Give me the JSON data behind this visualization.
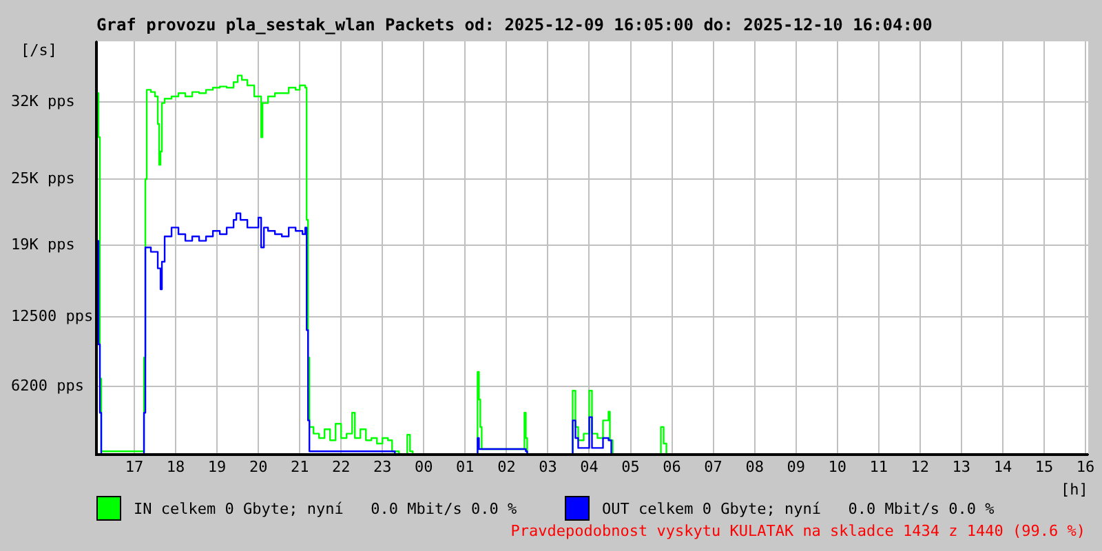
{
  "chart_data": {
    "type": "step",
    "title": "Graf provozu pla_sestak_wlan Packets od: 2025-12-09 16:05:00 do: 2025-12-10 16:04:00",
    "ylabel": "[/s]",
    "xlabel": "[h]",
    "xlim": [
      "2025-12-09T16:05",
      "2025-12-10T16:04"
    ],
    "xticks": [
      {
        "value": "2025-12-09T17:00",
        "label": "17"
      },
      {
        "value": "2025-12-09T18:00",
        "label": "18"
      },
      {
        "value": "2025-12-09T19:00",
        "label": "19"
      },
      {
        "value": "2025-12-09T20:00",
        "label": "20"
      },
      {
        "value": "2025-12-09T21:00",
        "label": "21"
      },
      {
        "value": "2025-12-09T22:00",
        "label": "22"
      },
      {
        "value": "2025-12-09T23:00",
        "label": "23"
      },
      {
        "value": "2025-12-10T00:00",
        "label": "00"
      },
      {
        "value": "2025-12-10T01:00",
        "label": "01"
      },
      {
        "value": "2025-12-10T02:00",
        "label": "02"
      },
      {
        "value": "2025-12-10T03:00",
        "label": "03"
      },
      {
        "value": "2025-12-10T04:00",
        "label": "04"
      },
      {
        "value": "2025-12-10T05:00",
        "label": "05"
      },
      {
        "value": "2025-12-10T06:00",
        "label": "06"
      },
      {
        "value": "2025-12-10T07:00",
        "label": "07"
      },
      {
        "value": "2025-12-10T08:00",
        "label": "08"
      },
      {
        "value": "2025-12-10T09:00",
        "label": "09"
      },
      {
        "value": "2025-12-10T10:00",
        "label": "10"
      },
      {
        "value": "2025-12-10T11:00",
        "label": "11"
      },
      {
        "value": "2025-12-10T12:00",
        "label": "12"
      },
      {
        "value": "2025-12-10T13:00",
        "label": "13"
      },
      {
        "value": "2025-12-10T14:00",
        "label": "14"
      },
      {
        "value": "2025-12-10T15:00",
        "label": "15"
      },
      {
        "value": "2025-12-10T16:00",
        "label": "16"
      }
    ],
    "ylim": [
      0,
      37500
    ],
    "yticks": [
      {
        "value": 0,
        "label": null
      },
      {
        "value": 6200,
        "label": "6200 pps"
      },
      {
        "value": 12500,
        "label": "12500 pps"
      },
      {
        "value": 19000,
        "label": "19K pps"
      },
      {
        "value": 25000,
        "label": "25K pps"
      },
      {
        "value": 32000,
        "label": "32K pps"
      }
    ],
    "grid": true,
    "legend": "bottom",
    "marker": "none",
    "series": [
      {
        "name": "IN celkem 0 Gbyte; nyní   0.0 Mbit/s 0.0 %",
        "color": "#00ff00",
        "x": [
          "2025-12-09T16:06",
          "2025-12-09T16:08",
          "2025-12-09T16:10",
          "2025-12-09T16:12",
          "2025-12-09T17:12",
          "2025-12-09T17:14",
          "2025-12-09T17:16",
          "2025-12-09T17:18",
          "2025-12-09T17:24",
          "2025-12-09T17:30",
          "2025-12-09T17:34",
          "2025-12-09T17:36",
          "2025-12-09T17:38",
          "2025-12-09T17:40",
          "2025-12-09T17:44",
          "2025-12-09T17:54",
          "2025-12-09T18:04",
          "2025-12-09T18:14",
          "2025-12-09T18:24",
          "2025-12-09T18:34",
          "2025-12-09T18:44",
          "2025-12-09T18:54",
          "2025-12-09T19:04",
          "2025-12-09T19:14",
          "2025-12-09T19:24",
          "2025-12-09T19:30",
          "2025-12-09T19:36",
          "2025-12-09T19:44",
          "2025-12-09T19:54",
          "2025-12-09T20:00",
          "2025-12-09T20:04",
          "2025-12-09T20:06",
          "2025-12-09T20:14",
          "2025-12-09T20:24",
          "2025-12-09T20:34",
          "2025-12-09T20:44",
          "2025-12-09T20:54",
          "2025-12-09T21:00",
          "2025-12-09T21:08",
          "2025-12-09T21:10",
          "2025-12-09T21:12",
          "2025-12-09T21:14",
          "2025-12-09T21:20",
          "2025-12-09T21:28",
          "2025-12-09T21:36",
          "2025-12-09T21:44",
          "2025-12-09T21:52",
          "2025-12-09T22:00",
          "2025-12-09T22:08",
          "2025-12-09T22:16",
          "2025-12-09T22:20",
          "2025-12-09T22:28",
          "2025-12-09T22:36",
          "2025-12-09T22:44",
          "2025-12-09T22:52",
          "2025-12-09T23:00",
          "2025-12-09T23:08",
          "2025-12-09T23:14",
          "2025-12-09T23:24",
          "2025-12-09T23:36",
          "2025-12-09T23:40",
          "2025-12-09T23:44",
          "2025-12-10T01:16",
          "2025-12-10T01:18",
          "2025-12-10T01:20",
          "2025-12-10T01:22",
          "2025-12-10T01:24",
          "2025-12-10T02:24",
          "2025-12-10T02:26",
          "2025-12-10T02:28",
          "2025-12-10T02:30",
          "2025-12-10T03:34",
          "2025-12-10T03:36",
          "2025-12-10T03:40",
          "2025-12-10T03:44",
          "2025-12-10T03:52",
          "2025-12-10T04:00",
          "2025-12-10T04:04",
          "2025-12-10T04:12",
          "2025-12-10T04:20",
          "2025-12-10T04:28",
          "2025-12-10T04:30",
          "2025-12-10T04:34",
          "2025-12-10T05:42",
          "2025-12-10T05:44",
          "2025-12-10T05:48",
          "2025-12-10T05:52",
          "2025-12-10T16:04"
        ],
        "values": [
          32800,
          28800,
          6900,
          300,
          300,
          8800,
          25000,
          33100,
          32900,
          32500,
          30000,
          26300,
          27500,
          31900,
          32300,
          32500,
          32800,
          32500,
          32900,
          32800,
          33100,
          33300,
          33400,
          33300,
          33800,
          34400,
          34000,
          33500,
          32500,
          32500,
          28800,
          31900,
          32500,
          32800,
          32800,
          33300,
          33100,
          33500,
          33300,
          21300,
          8800,
          2500,
          1900,
          1500,
          2300,
          1300,
          2800,
          1500,
          1900,
          3800,
          1500,
          2300,
          1300,
          1500,
          1000,
          1500,
          1300,
          300,
          0,
          1800,
          300,
          0,
          0,
          7500,
          5000,
          2500,
          500,
          500,
          3800,
          1500,
          0,
          0,
          5800,
          2500,
          1300,
          1900,
          5800,
          1900,
          1500,
          3100,
          3900,
          1300,
          0,
          0,
          2500,
          1000,
          0,
          0
        ]
      },
      {
        "name": "OUT celkem 0 Gbyte; nyní   0.0 Mbit/s 0.0 %",
        "color": "#0000ff",
        "x": [
          "2025-12-09T16:06",
          "2025-12-09T16:08",
          "2025-12-09T16:10",
          "2025-12-09T16:12",
          "2025-12-09T17:12",
          "2025-12-09T17:14",
          "2025-12-09T17:16",
          "2025-12-09T17:24",
          "2025-12-09T17:30",
          "2025-12-09T17:34",
          "2025-12-09T17:38",
          "2025-12-09T17:40",
          "2025-12-09T17:44",
          "2025-12-09T17:54",
          "2025-12-09T18:04",
          "2025-12-09T18:14",
          "2025-12-09T18:24",
          "2025-12-09T18:34",
          "2025-12-09T18:44",
          "2025-12-09T18:54",
          "2025-12-09T19:04",
          "2025-12-09T19:14",
          "2025-12-09T19:24",
          "2025-12-09T19:28",
          "2025-12-09T19:34",
          "2025-12-09T19:44",
          "2025-12-09T19:54",
          "2025-12-09T20:00",
          "2025-12-09T20:04",
          "2025-12-09T20:08",
          "2025-12-09T20:14",
          "2025-12-09T20:24",
          "2025-12-09T20:34",
          "2025-12-09T20:44",
          "2025-12-09T20:54",
          "2025-12-09T21:04",
          "2025-12-09T21:08",
          "2025-12-09T21:10",
          "2025-12-09T21:12",
          "2025-12-09T21:14",
          "2025-12-09T21:44",
          "2025-12-09T22:24",
          "2025-12-09T23:18",
          "2025-12-10T01:16",
          "2025-12-10T01:18",
          "2025-12-10T01:20",
          "2025-12-10T02:24",
          "2025-12-10T02:28",
          "2025-12-10T02:30",
          "2025-12-10T03:34",
          "2025-12-10T03:36",
          "2025-12-10T03:40",
          "2025-12-10T03:44",
          "2025-12-10T04:00",
          "2025-12-10T04:04",
          "2025-12-10T04:20",
          "2025-12-10T04:28",
          "2025-12-10T04:32",
          "2025-12-10T16:04"
        ],
        "values": [
          19400,
          10000,
          3800,
          0,
          0,
          3800,
          18800,
          18400,
          18400,
          16900,
          15000,
          17500,
          19800,
          20600,
          20000,
          19400,
          19800,
          19400,
          19800,
          20300,
          20000,
          20600,
          21300,
          21900,
          21300,
          20600,
          20600,
          21500,
          18800,
          20600,
          20300,
          20000,
          19800,
          20600,
          20300,
          20000,
          20600,
          11300,
          3100,
          300,
          300,
          300,
          0,
          0,
          1500,
          500,
          500,
          300,
          0,
          0,
          3100,
          1500,
          600,
          3400,
          600,
          1500,
          1300,
          0,
          0
        ]
      }
    ],
    "annotations": [
      "Pravdepodobnost vyskytu KULATAK na skladce 1434 z 1440 (99.6 %)"
    ]
  }
}
